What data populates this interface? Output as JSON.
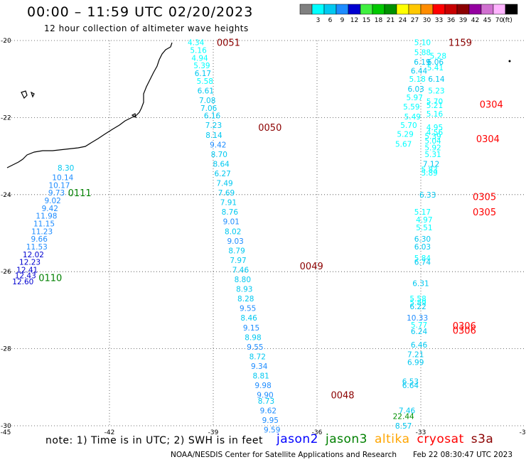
{
  "header": {
    "title": "00:00 – 11:59 UTC 02/20/2023",
    "subtitle": "12 hour collection of altimeter wave heights"
  },
  "colorbar": {
    "unit": "(ft)",
    "bins": [
      {
        "label": "",
        "color": "#808080"
      },
      {
        "label": "3",
        "color": "#00ffff"
      },
      {
        "label": "6",
        "color": "#00c8f0"
      },
      {
        "label": "9",
        "color": "#1e8cff"
      },
      {
        "label": "12",
        "color": "#0000d0"
      },
      {
        "label": "15",
        "color": "#40f040"
      },
      {
        "label": "18",
        "color": "#00c800"
      },
      {
        "label": "21",
        "color": "#009000"
      },
      {
        "label": "24",
        "color": "#ffff00"
      },
      {
        "label": "27",
        "color": "#ffc800"
      },
      {
        "label": "30",
        "color": "#ff8c00"
      },
      {
        "label": "33",
        "color": "#ff0000"
      },
      {
        "label": "36",
        "color": "#c80000"
      },
      {
        "label": "39",
        "color": "#8b0000"
      },
      {
        "label": "42",
        "color": "#9400a0"
      },
      {
        "label": "45",
        "color": "#d070d0"
      },
      {
        "label": "70",
        "color": "#ffb4ff"
      },
      {
        "label": "",
        "color": "#000000"
      }
    ]
  },
  "map": {
    "lon_range": [
      -45,
      -30
    ],
    "lat_range": [
      -30,
      -20
    ],
    "x_ticks": [
      "-45",
      "-42",
      "-39",
      "-36",
      "-33",
      "-30"
    ],
    "y_ticks": [
      "-20",
      "-22",
      "-24",
      "-26",
      "-28",
      "-30"
    ],
    "time_labels": [
      {
        "text": "0051",
        "color": "#8b0000",
        "lon": -38.9,
        "lat": -20.05
      },
      {
        "text": "0050",
        "color": "#8b0000",
        "lon": -37.7,
        "lat": -22.25
      },
      {
        "text": "0049",
        "color": "#8b0000",
        "lon": -36.5,
        "lat": -25.85
      },
      {
        "text": "0048",
        "color": "#8b0000",
        "lon": -35.6,
        "lat": -29.2
      },
      {
        "text": "0111",
        "color": "#008000",
        "lon": -43.2,
        "lat": -23.95
      },
      {
        "text": "0110",
        "color": "#008000",
        "lon": -44.05,
        "lat": -26.15
      },
      {
        "text": "1159",
        "color": "#8b0000",
        "lon": -32.2,
        "lat": -20.05
      },
      {
        "text": "0304",
        "color": "#ff0000",
        "lon": -31.3,
        "lat": -21.65
      },
      {
        "text": "0304",
        "color": "#ff0000",
        "lon": -31.4,
        "lat": -22.55
      },
      {
        "text": "0305",
        "color": "#ff0000",
        "lon": -31.5,
        "lat": -24.05
      },
      {
        "text": "0305",
        "color": "#ff0000",
        "lon": -31.5,
        "lat": -24.45
      },
      {
        "text": "0306",
        "color": "#ff0000",
        "lon": -32.08,
        "lat": -27.4
      },
      {
        "text": "0306",
        "color": "#ff0000",
        "lon": -32.08,
        "lat": -27.52
      }
    ],
    "tracks": [
      {
        "name": "track-0051-0048",
        "points": [
          {
            "v": "4.34",
            "lon": -39.5,
            "lat": -20.05
          },
          {
            "v": "5.16",
            "lon": -39.43,
            "lat": -20.25
          },
          {
            "v": "4.94",
            "lon": -39.39,
            "lat": -20.45
          },
          {
            "v": "5.39",
            "lon": -39.33,
            "lat": -20.65
          },
          {
            "v": "6.17",
            "lon": -39.3,
            "lat": -20.85
          },
          {
            "v": "5.58",
            "lon": -39.24,
            "lat": -21.05
          },
          {
            "v": "6.61",
            "lon": -39.22,
            "lat": -21.3
          },
          {
            "v": "7.08",
            "lon": -39.17,
            "lat": -21.55
          },
          {
            "v": "7.06",
            "lon": -39.13,
            "lat": -21.75
          },
          {
            "v": "6.16",
            "lon": -39.03,
            "lat": -21.95
          },
          {
            "v": "7.23",
            "lon": -38.99,
            "lat": -22.2
          },
          {
            "v": "8.14",
            "lon": -38.98,
            "lat": -22.45
          },
          {
            "v": "9.42",
            "lon": -38.86,
            "lat": -22.7
          },
          {
            "v": "8.70",
            "lon": -38.83,
            "lat": -22.95
          },
          {
            "v": "8.64",
            "lon": -38.77,
            "lat": -23.2
          },
          {
            "v": "6.27",
            "lon": -38.73,
            "lat": -23.45
          },
          {
            "v": "7.49",
            "lon": -38.67,
            "lat": -23.7
          },
          {
            "v": "7.69",
            "lon": -38.62,
            "lat": -23.95
          },
          {
            "v": "7.91",
            "lon": -38.56,
            "lat": -24.2
          },
          {
            "v": "8.76",
            "lon": -38.52,
            "lat": -24.45
          },
          {
            "v": "9.01",
            "lon": -38.48,
            "lat": -24.7
          },
          {
            "v": "8.02",
            "lon": -38.43,
            "lat": -24.95
          },
          {
            "v": "9.03",
            "lon": -38.36,
            "lat": -25.2
          },
          {
            "v": "8.79",
            "lon": -38.32,
            "lat": -25.45
          },
          {
            "v": "7.97",
            "lon": -38.28,
            "lat": -25.7
          },
          {
            "v": "7.46",
            "lon": -38.21,
            "lat": -25.95
          },
          {
            "v": "8.80",
            "lon": -38.15,
            "lat": -26.2
          },
          {
            "v": "8.93",
            "lon": -38.1,
            "lat": -26.45
          },
          {
            "v": "8.28",
            "lon": -38.06,
            "lat": -26.7
          },
          {
            "v": "9.55",
            "lon": -38.0,
            "lat": -26.95
          },
          {
            "v": "8.46",
            "lon": -37.97,
            "lat": -27.2
          },
          {
            "v": "9.15",
            "lon": -37.9,
            "lat": -27.45
          },
          {
            "v": "8.98",
            "lon": -37.85,
            "lat": -27.7
          },
          {
            "v": "9.55",
            "lon": -37.79,
            "lat": -27.95
          },
          {
            "v": "8.72",
            "lon": -37.72,
            "lat": -28.2
          },
          {
            "v": "9.34",
            "lon": -37.67,
            "lat": -28.45
          },
          {
            "v": "8.81",
            "lon": -37.62,
            "lat": -28.7
          },
          {
            "v": "9.98",
            "lon": -37.56,
            "lat": -28.95
          },
          {
            "v": "9.90",
            "lon": -37.5,
            "lat": -29.2
          },
          {
            "v": "8.73",
            "lon": -37.47,
            "lat": -29.35
          },
          {
            "v": "9.62",
            "lon": -37.41,
            "lat": -29.6
          },
          {
            "v": "9.95",
            "lon": -37.35,
            "lat": -29.85
          },
          {
            "v": "9.59",
            "lon": -37.3,
            "lat": -30.1
          }
        ]
      },
      {
        "name": "track-0111-0110",
        "points": [
          {
            "v": "8.30",
            "lon": -43.26,
            "lat": -23.3
          },
          {
            "v": "10.14",
            "lon": -43.35,
            "lat": -23.55
          },
          {
            "v": "10.17",
            "lon": -43.45,
            "lat": -23.75
          },
          {
            "v": "9.73",
            "lon": -43.53,
            "lat": -23.95
          },
          {
            "v": "9.02",
            "lon": -43.64,
            "lat": -24.15
          },
          {
            "v": "9.42",
            "lon": -43.72,
            "lat": -24.35
          },
          {
            "v": "11.98",
            "lon": -43.82,
            "lat": -24.55
          },
          {
            "v": "11.15",
            "lon": -43.89,
            "lat": -24.75
          },
          {
            "v": "11.23",
            "lon": -43.95,
            "lat": -24.95
          },
          {
            "v": "9.66",
            "lon": -44.03,
            "lat": -25.15
          },
          {
            "v": "11.53",
            "lon": -44.1,
            "lat": -25.35
          },
          {
            "v": "12.02",
            "lon": -44.2,
            "lat": -25.55
          },
          {
            "v": "12.23",
            "lon": -44.3,
            "lat": -25.75
          },
          {
            "v": "12.41",
            "lon": -44.38,
            "lat": -25.95
          },
          {
            "v": "12.43",
            "lon": -44.43,
            "lat": -26.1
          },
          {
            "v": "12.60",
            "lon": -44.5,
            "lat": -26.25
          }
        ]
      },
      {
        "name": "track-1159",
        "points": [
          {
            "v": "5.10",
            "lon": -32.95,
            "lat": -20.05
          },
          {
            "v": "5.88",
            "lon": -32.95,
            "lat": -20.3
          },
          {
            "v": "5.28",
            "lon": -32.5,
            "lat": -20.4
          },
          {
            "v": "6.19",
            "lon": -32.96,
            "lat": -20.55
          },
          {
            "v": "6.06",
            "lon": -32.58,
            "lat": -20.55
          },
          {
            "v": "5.41",
            "lon": -32.58,
            "lat": -20.7
          },
          {
            "v": "6.44",
            "lon": -33.05,
            "lat": -20.78
          },
          {
            "v": "5.18",
            "lon": -33.1,
            "lat": -21.0
          },
          {
            "v": "6.14",
            "lon": -32.55,
            "lat": -21.0
          },
          {
            "v": "6.03",
            "lon": -33.14,
            "lat": -21.25
          },
          {
            "v": "5.23",
            "lon": -32.55,
            "lat": -21.3
          },
          {
            "v": "5.97",
            "lon": -33.18,
            "lat": -21.48
          },
          {
            "v": "5.70",
            "lon": -32.6,
            "lat": -21.58
          },
          {
            "v": "5.21",
            "lon": -32.6,
            "lat": -21.68
          },
          {
            "v": "5.59",
            "lon": -33.27,
            "lat": -21.72
          },
          {
            "v": "5.16",
            "lon": -32.6,
            "lat": -21.9
          },
          {
            "v": "5.49",
            "lon": -33.24,
            "lat": -21.97
          },
          {
            "v": "5.70",
            "lon": -33.35,
            "lat": -22.2
          },
          {
            "v": "4.95",
            "lon": -32.6,
            "lat": -22.25
          },
          {
            "v": "4.56",
            "lon": -32.6,
            "lat": -22.38
          },
          {
            "v": "5.29",
            "lon": -33.45,
            "lat": -22.43
          },
          {
            "v": "5.39",
            "lon": -32.65,
            "lat": -22.48
          },
          {
            "v": "5.04",
            "lon": -32.65,
            "lat": -22.6
          },
          {
            "v": "5.67",
            "lon": -33.5,
            "lat": -22.68
          },
          {
            "v": "5.92",
            "lon": -32.65,
            "lat": -22.78
          },
          {
            "v": "5.31",
            "lon": -32.65,
            "lat": -22.95
          },
          {
            "v": "7.12",
            "lon": -32.7,
            "lat": -23.2
          },
          {
            "v": "5.83",
            "lon": -32.75,
            "lat": -23.35
          },
          {
            "v": "5.89",
            "lon": -32.75,
            "lat": -23.43
          },
          {
            "v": "6.33",
            "lon": -32.8,
            "lat": -24.0
          },
          {
            "v": "5.17",
            "lon": -32.95,
            "lat": -24.45
          },
          {
            "v": "4.97",
            "lon": -32.9,
            "lat": -24.65
          },
          {
            "v": "5.51",
            "lon": -32.9,
            "lat": -24.85
          },
          {
            "v": "6.30",
            "lon": -32.95,
            "lat": -25.15
          },
          {
            "v": "6.03",
            "lon": -32.95,
            "lat": -25.35
          },
          {
            "v": "5.84",
            "lon": -32.95,
            "lat": -25.65
          },
          {
            "v": "6.74",
            "lon": -32.95,
            "lat": -25.75
          },
          {
            "v": "6.31",
            "lon": -33.0,
            "lat": -26.3
          },
          {
            "v": "5.58",
            "lon": -33.08,
            "lat": -26.7
          },
          {
            "v": "5.89",
            "lon": -33.08,
            "lat": -26.8
          },
          {
            "v": "6.22",
            "lon": -33.08,
            "lat": -26.9
          },
          {
            "v": "10.33",
            "lon": -33.1,
            "lat": -27.2
          },
          {
            "v": "5.77",
            "lon": -33.05,
            "lat": -27.38
          },
          {
            "v": "6.24",
            "lon": -33.05,
            "lat": -27.55
          },
          {
            "v": "6.46",
            "lon": -33.05,
            "lat": -27.9
          },
          {
            "v": "7.21",
            "lon": -33.15,
            "lat": -28.15
          },
          {
            "v": "6.99",
            "lon": -33.15,
            "lat": -28.35
          },
          {
            "v": "6.53",
            "lon": -33.3,
            "lat": -28.85
          },
          {
            "v": "6.64",
            "lon": -33.3,
            "lat": -28.95
          },
          {
            "v": "7.46",
            "lon": -33.4,
            "lat": -29.6
          },
          {
            "v": "22.44",
            "lon": -33.5,
            "lat": -29.75
          },
          {
            "v": "8.57",
            "lon": -33.5,
            "lat": -30.0
          }
        ]
      }
    ]
  },
  "note": "note:  1) Time is in UTC;  2) SWH is in feet",
  "legend": [
    {
      "text": "jason2",
      "color": "#0000ff"
    },
    {
      "text": "jason3",
      "color": "#008000"
    },
    {
      "text": "altika",
      "color": "#ffa500"
    },
    {
      "text": "cryosat",
      "color": "#ff0000"
    },
    {
      "text": "s3a",
      "color": "#8b0000"
    }
  ],
  "footer": {
    "left": "NOAA/NESDIS Center for Satellite Applications and Research",
    "right": "Feb 22 08:30:47 UTC 2023"
  }
}
